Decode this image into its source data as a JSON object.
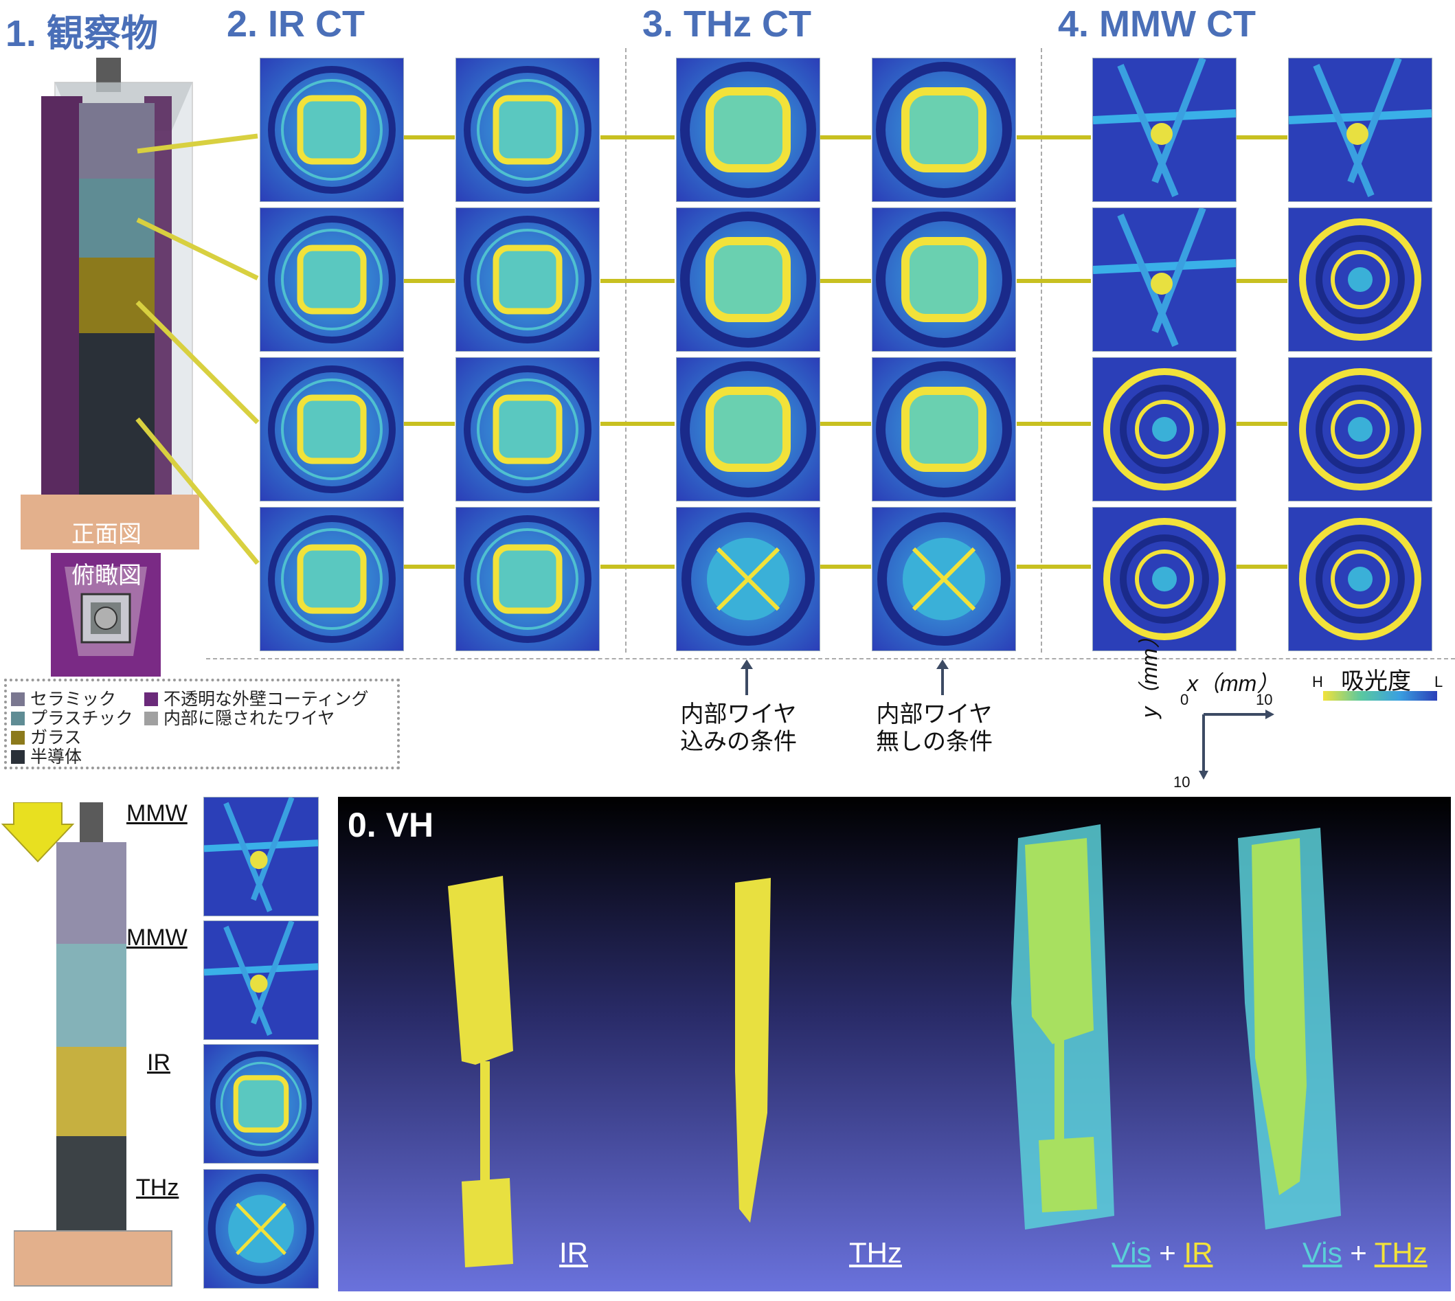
{
  "section_titles": {
    "observation": "1. 観察物",
    "ir_ct": "2. IR CT",
    "thz_ct": "3. THz CT",
    "mmw_ct": "4. MMW CT",
    "vh": "0. VH"
  },
  "object_views": {
    "front": "正面図",
    "top": "俯瞰図"
  },
  "legend": {
    "items": [
      {
        "label": "セラミック",
        "color": "#7a7790"
      },
      {
        "label": "不透明な外壁コーティング",
        "color": "#6b2a7a"
      },
      {
        "label": "プラスチック",
        "color": "#5f8c94"
      },
      {
        "label": "内部に隠されたワイヤ",
        "color": "#a0a0a0"
      },
      {
        "label": "ガラス",
        "color": "#8c7a1c"
      },
      {
        "label": "半導体",
        "color": "#2a3038"
      }
    ]
  },
  "conditions": {
    "with_wire": [
      "内部ワイヤ",
      "込みの条件"
    ],
    "without_wire": [
      "内部ワイヤ",
      "無しの条件"
    ]
  },
  "axes": {
    "x_label": "x（mm）",
    "y_label": "y（mm）",
    "x_start": "0",
    "x_end": "10",
    "y_end": "10"
  },
  "colorbar": {
    "title": "吸光度",
    "high": "H",
    "low": "L"
  },
  "side_panel": {
    "labels": [
      "MMW",
      "MMW",
      "IR",
      "THz"
    ]
  },
  "vh_labels": {
    "ir": "IR",
    "thz": "THz",
    "vis_ir": {
      "a": "Vis",
      "plus": " + ",
      "b": "IR"
    },
    "vis_thz": {
      "a": "Vis",
      "plus": " + ",
      "b": "THz"
    }
  },
  "colors": {
    "title_blue": "#4a6fb8",
    "connector": "#c8c020",
    "ct_background": "#2b3fb8",
    "ct_yellow": "#f2e23a",
    "vis_cyan": "#5ad0d8"
  }
}
